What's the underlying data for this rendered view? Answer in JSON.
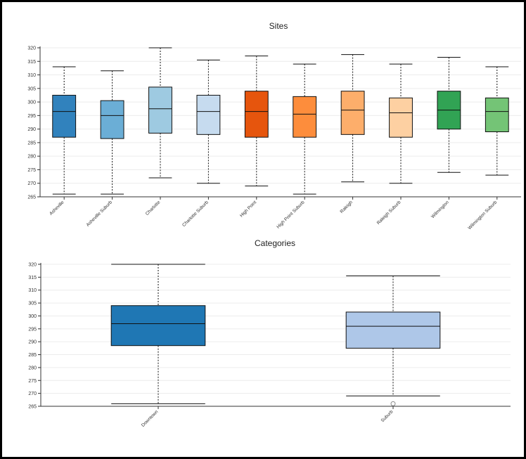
{
  "chart_data": [
    {
      "type": "boxplot",
      "title": "Sites",
      "ylim": [
        265,
        320
      ],
      "yticks": [
        265,
        270,
        275,
        280,
        285,
        290,
        295,
        300,
        305,
        310,
        315,
        320
      ],
      "categories": [
        "Asheville",
        "Asheville Suburb",
        "Charlotte",
        "Charlotte Suburb",
        "High Point",
        "High Point Suburb",
        "Raleigh",
        "Raleigh Suburb",
        "Wilmington",
        "Wilmington Suburb"
      ],
      "colors": [
        "#3182bd",
        "#6baed6",
        "#9ecae1",
        "#c6dbef",
        "#e6550d",
        "#fd8d3c",
        "#fdae6b",
        "#fdd0a2",
        "#31a354",
        "#74c476"
      ],
      "boxes": [
        {
          "min": 266,
          "q1": 287,
          "median": 296.5,
          "q3": 302.5,
          "max": 313
        },
        {
          "min": 266,
          "q1": 286.5,
          "median": 295,
          "q3": 300.5,
          "max": 311.5
        },
        {
          "min": 272,
          "q1": 288.5,
          "median": 297.5,
          "q3": 305.5,
          "max": 320
        },
        {
          "min": 270,
          "q1": 288,
          "median": 296.5,
          "q3": 302.5,
          "max": 315.5
        },
        {
          "min": 269,
          "q1": 287,
          "median": 296.5,
          "q3": 304,
          "max": 317
        },
        {
          "min": 266,
          "q1": 287,
          "median": 295.5,
          "q3": 302,
          "max": 314
        },
        {
          "min": 270.5,
          "q1": 288,
          "median": 297,
          "q3": 304,
          "max": 317.5
        },
        {
          "min": 270,
          "q1": 287,
          "median": 296,
          "q3": 301.5,
          "max": 314
        },
        {
          "min": 274,
          "q1": 290,
          "median": 297,
          "q3": 304,
          "max": 316.5
        },
        {
          "min": 273,
          "q1": 289,
          "median": 296.5,
          "q3": 301.5,
          "max": 313
        }
      ]
    },
    {
      "type": "boxplot",
      "title": "Categories",
      "ylim": [
        265,
        320
      ],
      "yticks": [
        265,
        270,
        275,
        280,
        285,
        290,
        295,
        300,
        305,
        310,
        315,
        320
      ],
      "categories": [
        "Downtown",
        "Suburb"
      ],
      "colors": [
        "#1f77b4",
        "#aec7e8"
      ],
      "boxes": [
        {
          "min": 266,
          "q1": 288.5,
          "median": 297,
          "q3": 304,
          "max": 320
        },
        {
          "min": 269,
          "q1": 287.5,
          "median": 296,
          "q3": 301.5,
          "max": 315.5,
          "outliers": [
            266
          ]
        }
      ]
    }
  ]
}
